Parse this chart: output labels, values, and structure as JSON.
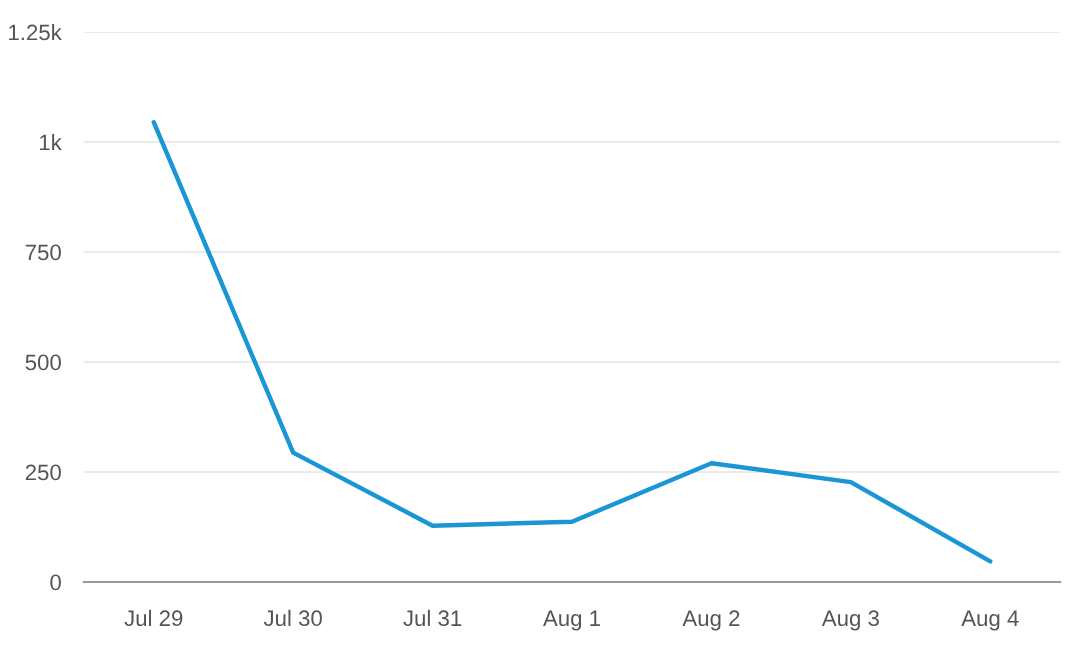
{
  "chart_data": {
    "type": "line",
    "categories": [
      "Jul 29",
      "Jul 30",
      "Jul 31",
      "Aug 1",
      "Aug 2",
      "Aug 3",
      "Aug 4"
    ],
    "series": [
      {
        "color": "#1a96d4",
        "values": [
          1045,
          294,
          128,
          137,
          270,
          227,
          47
        ]
      }
    ],
    "ylim": [
      0,
      1250
    ],
    "yticks": [
      0,
      250,
      500,
      750,
      {
        "value": 1000,
        "label": "1k"
      },
      {
        "value": 1250,
        "label": "1.25k"
      }
    ],
    "grid": "y",
    "marker": "none",
    "line_style": "solid"
  }
}
